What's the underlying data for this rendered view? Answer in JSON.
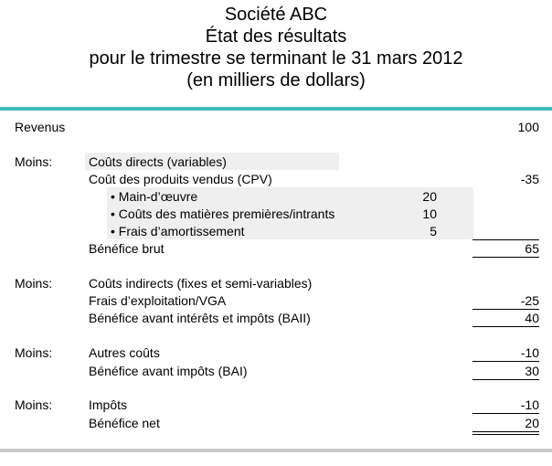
{
  "header": {
    "line1": "Société ABC",
    "line2": "État des résultats",
    "line3": "pour le trimestre se terminant le 31 mars 2012",
    "line4": "(en milliers de dollars)"
  },
  "rows": {
    "revenus": {
      "label": "Revenus",
      "value": "100"
    },
    "moins1": "Moins:",
    "couts_directs": "Coûts directs (variables)",
    "cpv": {
      "label": "Coût des produits vendus (CPV)",
      "value": "-35"
    },
    "main_oeuvre": {
      "label": "• Main-d’œuvre",
      "value": "20"
    },
    "matieres": {
      "label": "• Coûts des matières premières/intrants",
      "value": "10"
    },
    "amortissement": {
      "label": "• Frais d’amortissement",
      "value": "5"
    },
    "benefice_brut": {
      "label": "Bénéfice brut",
      "value": "65"
    },
    "moins2": "Moins:",
    "couts_indirects": "Coûts indirects (fixes et semi-variables)",
    "frais_exploitation": {
      "label": "Frais d’exploitation/VGA",
      "value": "-25"
    },
    "baii": {
      "label": "Bénéfice avant intérêts et impôts (BAII)",
      "value": "40"
    },
    "moins3": "Moins:",
    "autres_couts": {
      "label": "Autres coûts",
      "value": "-10"
    },
    "bai": {
      "label": "Bénéfice avant impôts (BAI)",
      "value": "30"
    },
    "moins4": "Moins:",
    "impots": {
      "label": "Impôts",
      "value": "-10"
    },
    "benefice_net": {
      "label": "Bénéfice net",
      "value": "20"
    }
  },
  "colors": {
    "accent_rule": "#3fbfb3",
    "bottom_rule": "#c8c8c8",
    "shading": "#efefef"
  }
}
